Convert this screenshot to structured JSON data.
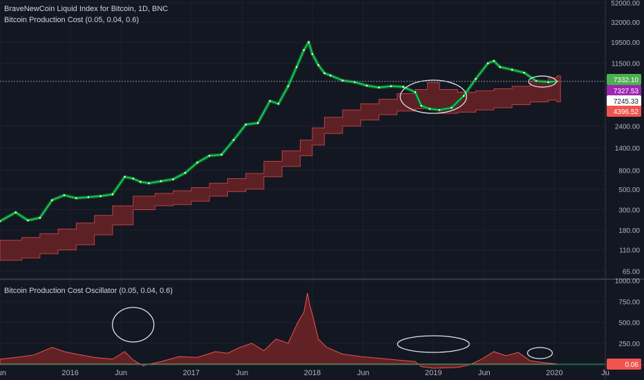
{
  "chart_data": [
    {
      "type": "line",
      "title": "BraveNewCoin Liquid Index for Bitcoin, 1D, BNC",
      "subtitle": "Bitcoin Production Cost (0.05, 0.04, 0.6)",
      "yscale": "log",
      "ylim": [
        55,
        52000
      ],
      "yticks": [
        52000,
        32000,
        19500,
        11500,
        2400,
        1400,
        800,
        500,
        300,
        180,
        110,
        65
      ],
      "ytick_labels": [
        "52000.00",
        "32000.00",
        "19500.00",
        "11500.00",
        "2400.00",
        "1400.00",
        "800.00",
        "500.00",
        "300.00",
        "180.00",
        "110.00",
        "65.00"
      ],
      "price_labels": [
        {
          "text": "7332.10",
          "value": 7332.1,
          "color": "#4caf50"
        },
        {
          "text": "7327.53",
          "value": 7327.53,
          "color": "#9c27b0"
        },
        {
          "text": "7245.33",
          "value": 7245.33,
          "color": "#ffffff"
        },
        {
          "text": "4396.52",
          "value": 4396.52,
          "color": "#ef5350"
        }
      ],
      "price_series": {
        "x": [
          2015.42,
          2015.55,
          2015.65,
          2015.75,
          2015.85,
          2015.95,
          2016.05,
          2016.15,
          2016.25,
          2016.35,
          2016.45,
          2016.52,
          2016.58,
          2016.65,
          2016.75,
          2016.85,
          2016.95,
          2017.05,
          2017.15,
          2017.25,
          2017.35,
          2017.45,
          2017.55,
          2017.65,
          2017.72,
          2017.8,
          2017.87,
          2017.93,
          2017.97,
          2018.0,
          2018.05,
          2018.1,
          2018.15,
          2018.25,
          2018.35,
          2018.45,
          2018.55,
          2018.65,
          2018.75,
          2018.85,
          2018.9,
          2018.97,
          2019.05,
          2019.15,
          2019.25,
          2019.35,
          2019.45,
          2019.5,
          2019.55,
          2019.65,
          2019.75,
          2019.85,
          2019.95,
          2020.02
        ],
        "values": [
          225,
          280,
          230,
          245,
          380,
          430,
          400,
          410,
          420,
          440,
          680,
          650,
          600,
          580,
          610,
          640,
          750,
          970,
          1150,
          1180,
          1700,
          2500,
          2600,
          4500,
          4200,
          6500,
          10500,
          16000,
          19500,
          14500,
          11000,
          9000,
          8500,
          7500,
          7200,
          6600,
          6300,
          6500,
          6400,
          5600,
          4000,
          3700,
          3600,
          3800,
          5100,
          7800,
          11500,
          12200,
          10500,
          9800,
          9100,
          7400,
          7200,
          7332
        ]
      },
      "production_cost_band": {
        "x": [
          2015.42,
          2015.6,
          2015.75,
          2015.9,
          2016.05,
          2016.2,
          2016.35,
          2016.52,
          2016.7,
          2016.85,
          2017.0,
          2017.15,
          2017.3,
          2017.45,
          2017.6,
          2017.75,
          2017.9,
          2018.0,
          2018.1,
          2018.25,
          2018.4,
          2018.55,
          2018.7,
          2018.85,
          2018.95,
          2019.05,
          2019.2,
          2019.35,
          2019.5,
          2019.65,
          2019.8,
          2019.95,
          2020.02
        ],
        "upper": [
          140,
          150,
          165,
          185,
          215,
          260,
          330,
          420,
          450,
          480,
          520,
          580,
          650,
          740,
          1000,
          1300,
          1700,
          2300,
          3000,
          3600,
          4200,
          4700,
          5400,
          6000,
          7100,
          6000,
          5600,
          5800,
          6100,
          6500,
          7400,
          8000,
          8400
        ],
        "lower": [
          85,
          90,
          100,
          110,
          125,
          160,
          205,
          300,
          330,
          340,
          370,
          420,
          470,
          500,
          680,
          880,
          1150,
          1500,
          2000,
          2400,
          2800,
          3200,
          3500,
          3700,
          3700,
          3300,
          3400,
          3600,
          3800,
          4100,
          4400,
          4600,
          4400
        ]
      },
      "highlight_ellipses": [
        {
          "x_center": 2019.0,
          "y_center": 5000,
          "note": "price below production cost"
        },
        {
          "x_center": 2019.9,
          "y_center": 7300,
          "note": "current price near production cost"
        }
      ]
    },
    {
      "type": "area",
      "title": "Bitcoin Production Cost Oscillator (0.05, 0.04, 0.6)",
      "ylim": [
        0,
        1000
      ],
      "yticks": [
        0,
        250,
        500,
        750,
        1000
      ],
      "ytick_labels": [
        "0.00",
        "250.00",
        "500.00",
        "750.00",
        "1000.00"
      ],
      "last_value_label": {
        "text": "0.06",
        "color": "#ef5350"
      },
      "x": [
        2015.42,
        2015.55,
        2015.7,
        2015.85,
        2015.95,
        2016.05,
        2016.2,
        2016.35,
        2016.45,
        2016.52,
        2016.6,
        2016.75,
        2016.9,
        2017.05,
        2017.2,
        2017.3,
        2017.4,
        2017.5,
        2017.6,
        2017.7,
        2017.8,
        2017.88,
        2017.93,
        2017.96,
        2017.98,
        2018.0,
        2018.05,
        2018.12,
        2018.25,
        2018.4,
        2018.55,
        2018.7,
        2018.85,
        2018.9,
        2019.0,
        2019.2,
        2019.3,
        2019.4,
        2019.5,
        2019.6,
        2019.7,
        2019.8,
        2019.9,
        2020.02
      ],
      "values": [
        60,
        80,
        110,
        200,
        150,
        120,
        80,
        60,
        150,
        50,
        -20,
        30,
        90,
        80,
        150,
        130,
        200,
        250,
        160,
        300,
        250,
        500,
        620,
        850,
        700,
        600,
        300,
        200,
        120,
        90,
        70,
        50,
        30,
        -30,
        -50,
        -40,
        -10,
        60,
        150,
        100,
        140,
        40,
        20,
        0.06
      ]
    }
  ],
  "x_axis": {
    "ticks": [
      2015.42,
      2016.0,
      2016.42,
      2017.0,
      2017.42,
      2018.0,
      2018.42,
      2019.0,
      2019.42,
      2020.0,
      2020.42
    ],
    "labels": [
      "Jun",
      "2016",
      "Jun",
      "2017",
      "Jun",
      "2018",
      "Jun",
      "2019",
      "Jun",
      "2020",
      "Ju"
    ]
  },
  "colors": {
    "background": "#131722",
    "grid": "#1e2230",
    "price_line": "#00e676",
    "price_shadow": "#1b5e20",
    "band_fill": "#6b2326",
    "band_edge": "#ef5350",
    "axis_text": "#b2b5be"
  }
}
